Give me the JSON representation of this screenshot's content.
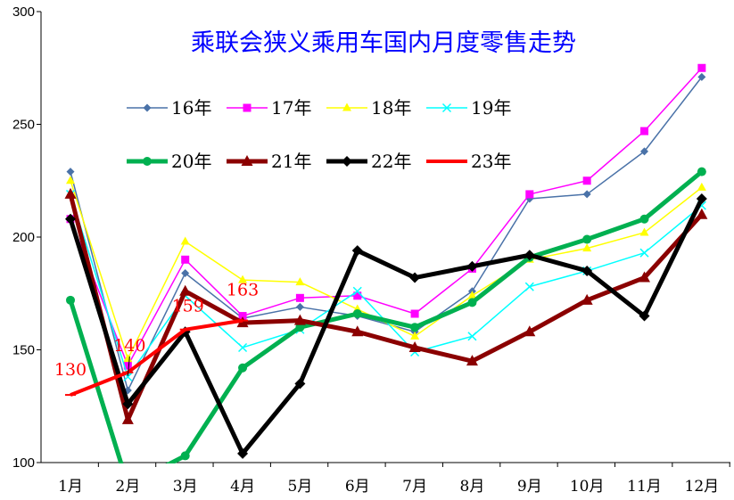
{
  "chart_data": {
    "type": "line",
    "title": "乘联会狭义乘用车国内月度零售走势",
    "xlabel": "",
    "ylabel": "",
    "categories": [
      "1月",
      "2月",
      "3月",
      "4月",
      "5月",
      "6月",
      "7月",
      "8月",
      "9月",
      "10月",
      "11月",
      "12月"
    ],
    "ylim": [
      100,
      300
    ],
    "yticks": [
      "100",
      "150",
      "200",
      "250",
      "300"
    ],
    "grid": false,
    "legend_position": "top-left",
    "series": [
      {
        "name": "16年",
        "color": "#4a72a8",
        "marker": "diamond",
        "width": 1.5,
        "values": [
          229,
          132,
          184,
          164,
          169,
          165,
          158,
          176,
          217,
          219,
          238,
          271
        ]
      },
      {
        "name": "17年",
        "color": "#ff00ff",
        "marker": "square",
        "width": 1.5,
        "values": [
          208,
          143,
          190,
          165,
          173,
          174,
          166,
          186,
          219,
          225,
          247,
          275
        ]
      },
      {
        "name": "18年",
        "color": "#ffff00",
        "marker": "triangle",
        "width": 1.5,
        "values": [
          225,
          146,
          198,
          181,
          180,
          168,
          156,
          174,
          190,
          195,
          202,
          222
        ]
      },
      {
        "name": "19年",
        "color": "#00ffff",
        "marker": "x",
        "width": 1.5,
        "values": [
          219,
          138,
          174,
          151,
          159,
          176,
          149,
          156,
          178,
          185,
          193,
          214
        ]
      },
      {
        "name": "20年",
        "color": "#00b050",
        "marker": "circle",
        "width": 5,
        "values": [
          172,
          90,
          103,
          142,
          160,
          166,
          160,
          171,
          191,
          199,
          208,
          229
        ]
      },
      {
        "name": "21年",
        "color": "#8b0000",
        "marker": "triangle",
        "width": 5,
        "values": [
          219,
          119,
          176,
          162,
          163,
          158,
          151,
          145,
          158,
          172,
          182,
          210
        ]
      },
      {
        "name": "22年",
        "color": "#000000",
        "marker": "diamond",
        "width": 5,
        "values": [
          208,
          126,
          158,
          104,
          135,
          194,
          182,
          187,
          192,
          185,
          165,
          217
        ]
      },
      {
        "name": "23年",
        "color": "#ff0000",
        "marker": "dash",
        "width": 4,
        "values": [
          130,
          140,
          159,
          163,
          null,
          null,
          null,
          null,
          null,
          null,
          null,
          null
        ]
      }
    ],
    "annotations": [
      {
        "text": "130",
        "month_index": 0,
        "value": 130
      },
      {
        "text": "140",
        "month_index": 1,
        "value": 140
      },
      {
        "text": "159",
        "month_index": 2,
        "value": 159
      },
      {
        "text": "163",
        "month_index": 3,
        "value": 163
      }
    ]
  }
}
